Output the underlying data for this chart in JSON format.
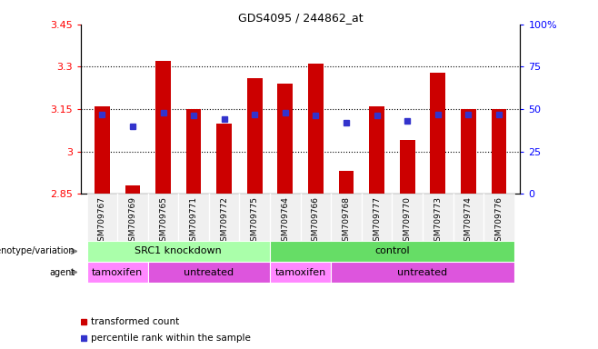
{
  "title": "GDS4095 / 244862_at",
  "samples": [
    "GSM709767",
    "GSM709769",
    "GSM709765",
    "GSM709771",
    "GSM709772",
    "GSM709775",
    "GSM709764",
    "GSM709766",
    "GSM709768",
    "GSM709777",
    "GSM709770",
    "GSM709773",
    "GSM709774",
    "GSM709776"
  ],
  "transformed_count": [
    3.16,
    2.88,
    3.32,
    3.15,
    3.1,
    3.26,
    3.24,
    3.31,
    2.93,
    3.16,
    3.04,
    3.28,
    3.15,
    3.15
  ],
  "percentile_rank": [
    47,
    40,
    48,
    46,
    44,
    47,
    48,
    46,
    42,
    46,
    43,
    47,
    47,
    47
  ],
  "ylim_left": [
    2.85,
    3.45
  ],
  "ylim_right": [
    0,
    100
  ],
  "yticks_left": [
    2.85,
    3.0,
    3.15,
    3.3,
    3.45
  ],
  "yticks_right": [
    0,
    25,
    50,
    75,
    100
  ],
  "ytick_labels_left": [
    "2.85",
    "3",
    "3.15",
    "3.3",
    "3.45"
  ],
  "ytick_labels_right": [
    "0",
    "25",
    "50",
    "75",
    "100%"
  ],
  "hlines": [
    3.0,
    3.15,
    3.3
  ],
  "bar_color": "#cc0000",
  "dot_color": "#3333cc",
  "bar_bottom": 2.85,
  "bar_width": 0.5,
  "genotype_groups": [
    {
      "label": "SRC1 knockdown",
      "start": 0,
      "end": 5,
      "color": "#aaffaa"
    },
    {
      "label": "control",
      "start": 6,
      "end": 13,
      "color": "#66dd66"
    }
  ],
  "agent_groups": [
    {
      "label": "tamoxifen",
      "start": 0,
      "end": 1,
      "color": "#ff88ff"
    },
    {
      "label": "untreated",
      "start": 2,
      "end": 5,
      "color": "#dd55dd"
    },
    {
      "label": "tamoxifen",
      "start": 6,
      "end": 7,
      "color": "#ff88ff"
    },
    {
      "label": "untreated",
      "start": 8,
      "end": 13,
      "color": "#dd55dd"
    }
  ],
  "legend_items": [
    {
      "label": "transformed count",
      "color": "#cc0000"
    },
    {
      "label": "percentile rank within the sample",
      "color": "#3333cc"
    }
  ],
  "bg_color": "#f0f0f0"
}
